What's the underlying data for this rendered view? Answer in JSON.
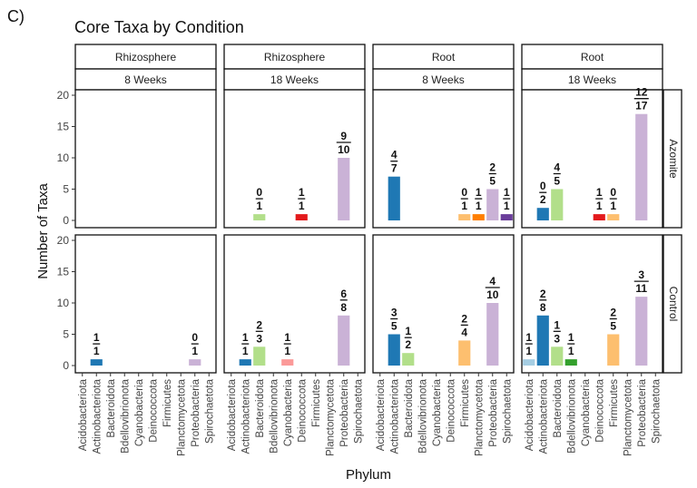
{
  "panel_label": "C)",
  "chart_data": {
    "type": "bar",
    "title": "Core Taxa by Condition",
    "xlabel": "Phylum",
    "ylabel": "Number of Taxa",
    "ylim": [
      0,
      20
    ],
    "yticks": [
      0,
      5,
      10,
      15,
      20
    ],
    "grid": false,
    "categories": [
      "Acidobacteriota",
      "Actinobacteriota",
      "Bacteroidota",
      "Bdellovibrionota",
      "Cyanobacteria",
      "Deinococcota",
      "Firmicutes",
      "Planctomycetota",
      "Proteobacteria",
      "Spirochaetota"
    ],
    "colors": {
      "Acidobacteriota": "#a6cee3",
      "Actinobacteriota": "#1f78b4",
      "Bacteroidota": "#b2df8a",
      "Bdellovibrionota": "#33a02c",
      "Cyanobacteria": "#fb9a99",
      "Deinococcota": "#e31a1c",
      "Firmicutes": "#fdbf6f",
      "Planctomycetota": "#ff7f00",
      "Proteobacteria": "#cab2d6",
      "Spirochaetota": "#6a3d9a"
    },
    "column_facets": [
      {
        "top": "Rhizosphere",
        "bottom": "8 Weeks"
      },
      {
        "top": "Rhizosphere",
        "bottom": "18 Weeks"
      },
      {
        "top": "Root",
        "bottom": "8 Weeks"
      },
      {
        "top": "Root",
        "bottom": "18 Weeks"
      }
    ],
    "row_facets": [
      "Azomite",
      "Control"
    ],
    "panels": [
      {
        "row": 0,
        "col": 0,
        "bars": []
      },
      {
        "row": 0,
        "col": 1,
        "bars": [
          {
            "category": "Bacteroidota",
            "value": 1,
            "num": "0",
            "den": "1"
          },
          {
            "category": "Deinococcota",
            "value": 1,
            "num": "1",
            "den": "1"
          },
          {
            "category": "Proteobacteria",
            "value": 10,
            "num": "9",
            "den": "10"
          }
        ]
      },
      {
        "row": 0,
        "col": 2,
        "bars": [
          {
            "category": "Actinobacteriota",
            "value": 7,
            "num": "4",
            "den": "7"
          },
          {
            "category": "Firmicutes",
            "value": 1,
            "num": "0",
            "den": "1"
          },
          {
            "category": "Planctomycetota",
            "value": 1,
            "num": "1",
            "den": "1"
          },
          {
            "category": "Proteobacteria",
            "value": 5,
            "num": "2",
            "den": "5"
          },
          {
            "category": "Spirochaetota",
            "value": 1,
            "num": "1",
            "den": "1"
          }
        ]
      },
      {
        "row": 0,
        "col": 3,
        "bars": [
          {
            "category": "Actinobacteriota",
            "value": 2,
            "num": "0",
            "den": "2"
          },
          {
            "category": "Bacteroidota",
            "value": 5,
            "num": "4",
            "den": "5"
          },
          {
            "category": "Deinococcota",
            "value": 1,
            "num": "1",
            "den": "1"
          },
          {
            "category": "Firmicutes",
            "value": 1,
            "num": "0",
            "den": "1"
          },
          {
            "category": "Proteobacteria",
            "value": 17,
            "num": "12",
            "den": "17"
          }
        ]
      },
      {
        "row": 1,
        "col": 0,
        "bars": [
          {
            "category": "Actinobacteriota",
            "value": 1,
            "num": "1",
            "den": "1"
          },
          {
            "category": "Proteobacteria",
            "value": 1,
            "num": "0",
            "den": "1"
          }
        ]
      },
      {
        "row": 1,
        "col": 1,
        "bars": [
          {
            "category": "Actinobacteriota",
            "value": 1,
            "num": "1",
            "den": "1"
          },
          {
            "category": "Bacteroidota",
            "value": 3,
            "num": "2",
            "den": "3"
          },
          {
            "category": "Cyanobacteria",
            "value": 1,
            "num": "1",
            "den": "1"
          },
          {
            "category": "Proteobacteria",
            "value": 8,
            "num": "6",
            "den": "8"
          }
        ]
      },
      {
        "row": 1,
        "col": 2,
        "bars": [
          {
            "category": "Actinobacteriota",
            "value": 5,
            "num": "3",
            "den": "5"
          },
          {
            "category": "Bacteroidota",
            "value": 2,
            "num": "1",
            "den": "2"
          },
          {
            "category": "Firmicutes",
            "value": 4,
            "num": "2",
            "den": "4"
          },
          {
            "category": "Proteobacteria",
            "value": 10,
            "num": "4",
            "den": "10"
          }
        ]
      },
      {
        "row": 1,
        "col": 3,
        "bars": [
          {
            "category": "Acidobacteriota",
            "value": 1,
            "num": "1",
            "den": "1"
          },
          {
            "category": "Actinobacteriota",
            "value": 8,
            "num": "2",
            "den": "8"
          },
          {
            "category": "Bacteroidota",
            "value": 3,
            "num": "1",
            "den": "3"
          },
          {
            "category": "Bdellovibrionota",
            "value": 1,
            "num": "1",
            "den": "1"
          },
          {
            "category": "Firmicutes",
            "value": 5,
            "num": "2",
            "den": "5"
          },
          {
            "category": "Proteobacteria",
            "value": 11,
            "num": "3",
            "den": "11"
          }
        ]
      }
    ]
  }
}
